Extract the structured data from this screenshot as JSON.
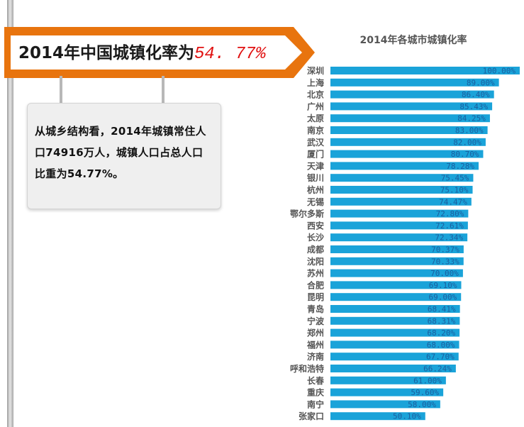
{
  "headline": {
    "text": "2014年中国城镇化率为",
    "value": "54. 77%"
  },
  "description": "从城乡结构看，2014年城镇常住人口74916万人，城镇人口占总人口比重为54.77%。",
  "colors": {
    "banner": "#e8740e",
    "bar": "#1aa3d9",
    "label_text": "#1a5fa0"
  },
  "chart_data": {
    "type": "bar",
    "orientation": "horizontal",
    "title": "2014年各城市城镇化率",
    "xlim": [
      0,
      100
    ],
    "categories": [
      "深圳",
      "上海",
      "北京",
      "广州",
      "太原",
      "南京",
      "武汉",
      "厦门",
      "天津",
      "银川",
      "杭州",
      "无锡",
      "鄂尔多斯",
      "西安",
      "长沙",
      "成都",
      "沈阳",
      "苏州",
      "合肥",
      "昆明",
      "青岛",
      "宁波",
      "郑州",
      "福州",
      "济南",
      "呼和浩特",
      "长春",
      "重庆",
      "南宁",
      "张家口"
    ],
    "values": [
      100.0,
      89.0,
      86.4,
      85.43,
      84.25,
      83.0,
      82.0,
      80.7,
      78.28,
      75.45,
      75.1,
      74.47,
      72.8,
      72.61,
      72.34,
      70.37,
      70.33,
      70.0,
      69.1,
      69.0,
      68.41,
      68.31,
      68.2,
      68.0,
      67.7,
      66.24,
      61.0,
      59.6,
      58.0,
      50.1
    ],
    "labels": [
      "100.00%",
      "89.00%",
      "86.40%",
      "85.43%",
      "84.25%",
      "83.00%",
      "82.00%",
      "80.70%",
      "78.28%",
      "75.45%",
      "75.10%",
      "74.47%",
      "72.80%",
      "72.61%",
      "72.34%",
      "70.37%",
      "70.33%",
      "70.00%",
      "69.10%",
      "69.00%",
      "68.41%",
      "68.31%",
      "68.20%",
      "68.00%",
      "67.70%",
      "66.24%",
      "61.00%",
      "59.60%",
      "58.00%",
      "50.10%"
    ]
  }
}
